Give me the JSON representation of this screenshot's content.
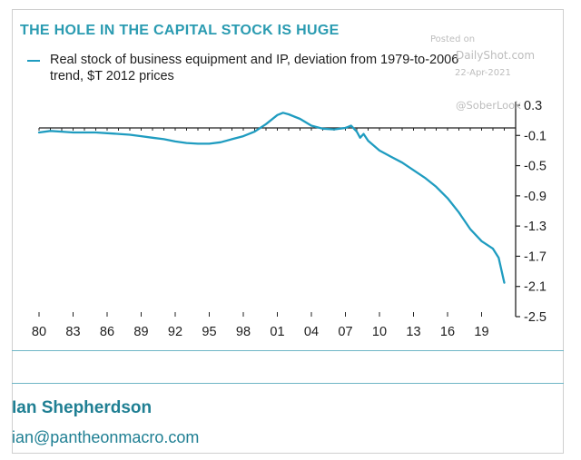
{
  "chart_data": {
    "type": "line",
    "title": "THE HOLE IN THE CAPITAL STOCK IS HUGE",
    "series": [
      {
        "name": "Real stock of business equipment and IP, deviation from 1979-to-2006 trend, $T 2012 prices",
        "x": [
          1980,
          1981,
          1982,
          1983,
          1984,
          1985,
          1986,
          1987,
          1988,
          1989,
          1990,
          1991,
          1992,
          1993,
          1994,
          1995,
          1996,
          1997,
          1998,
          1999,
          2000,
          2001,
          2001.5,
          2002,
          2003,
          2004,
          2005,
          2006,
          2007,
          2007.5,
          2008,
          2008.3,
          2008.6,
          2009,
          2010,
          2011,
          2012,
          2013,
          2014,
          2015,
          2016,
          2017,
          2018,
          2019,
          2020,
          2020.5,
          2021
        ],
        "values": [
          -0.06,
          -0.04,
          -0.05,
          -0.06,
          -0.06,
          -0.06,
          -0.07,
          -0.08,
          -0.09,
          -0.11,
          -0.13,
          -0.15,
          -0.18,
          -0.2,
          -0.21,
          -0.21,
          -0.19,
          -0.15,
          -0.11,
          -0.05,
          0.05,
          0.17,
          0.2,
          0.18,
          0.12,
          0.03,
          -0.01,
          -0.02,
          0.0,
          0.03,
          -0.05,
          -0.13,
          -0.08,
          -0.17,
          -0.3,
          -0.38,
          -0.46,
          -0.56,
          -0.66,
          -0.78,
          -0.93,
          -1.12,
          -1.34,
          -1.5,
          -1.6,
          -1.72,
          -2.05
        ]
      }
    ],
    "xlabel": "",
    "ylabel": "",
    "xlim": [
      1980,
      2022
    ],
    "ylim": [
      -2.5,
      0.3
    ],
    "x_ticks": [
      "80",
      "83",
      "86",
      "89",
      "92",
      "95",
      "98",
      "01",
      "04",
      "07",
      "10",
      "13",
      "16",
      "19"
    ],
    "x_tick_values": [
      1980,
      1983,
      1986,
      1989,
      1992,
      1995,
      1998,
      2001,
      2004,
      2007,
      2010,
      2013,
      2016,
      2019
    ],
    "y_ticks": [
      "0.3",
      "-0.1",
      "-0.5",
      "-0.9",
      "-1.3",
      "-1.7",
      "-2.1",
      "-2.5"
    ],
    "y_tick_values": [
      0.3,
      -0.1,
      -0.5,
      -0.9,
      -1.3,
      -1.7,
      -2.1,
      -2.5
    ],
    "zero_line": 0,
    "axis_position": "right",
    "legend_position": "top-left",
    "grid": false,
    "color": "#1f9cc0"
  },
  "legend": {
    "label": "Real stock of business equipment and IP, deviation from 1979-to-2006 trend, $T 2012 prices"
  },
  "watermark": {
    "posted": "Posted on",
    "site": "DailyShot.com",
    "date": "22-Apr-2021",
    "handle": "@SoberLook"
  },
  "author": {
    "name": "Ian Shepherdson",
    "email": "ian@pantheonmacro.com"
  }
}
